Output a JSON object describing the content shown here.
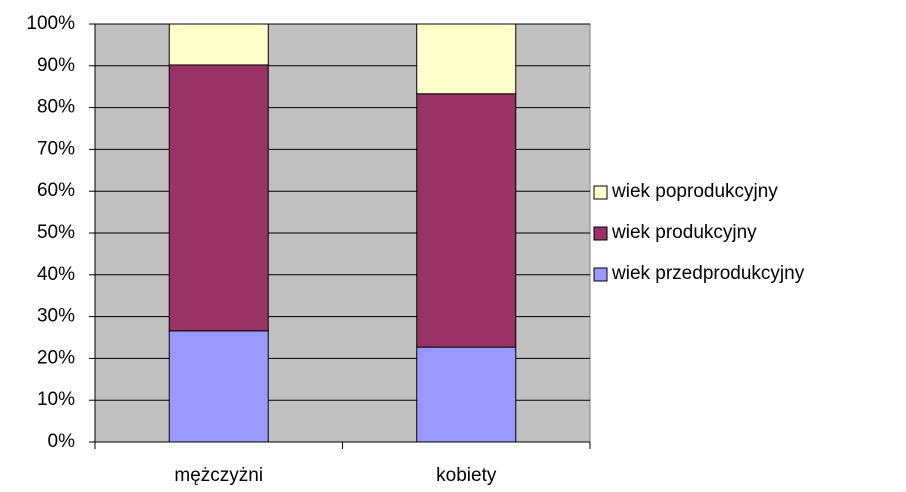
{
  "chart_data": {
    "type": "stacked_bar",
    "categories": [
      "mężczyżni",
      "kobiety"
    ],
    "series": [
      {
        "name": "wiek przedprodukcyjny",
        "color": "#9999ff",
        "values": [
          26.6,
          22.7
        ]
      },
      {
        "name": "wiek produkcyjny",
        "color": "#993366",
        "values": [
          63.6,
          60.6
        ]
      },
      {
        "name": "wiek poprodukcyjny",
        "color": "#ffffcc",
        "values": [
          9.8,
          16.7
        ]
      }
    ],
    "ylim": [
      0,
      100
    ],
    "yticks": [
      {
        "value": 0,
        "label": "0%"
      },
      {
        "value": 10,
        "label": "10%"
      },
      {
        "value": 20,
        "label": "20%"
      },
      {
        "value": 30,
        "label": "30%"
      },
      {
        "value": 40,
        "label": "40%"
      },
      {
        "value": 50,
        "label": "50%"
      },
      {
        "value": 60,
        "label": "60%"
      },
      {
        "value": 70,
        "label": "70%"
      },
      {
        "value": 80,
        "label": "80%"
      },
      {
        "value": 90,
        "label": "90%"
      },
      {
        "value": 100,
        "label": "100%"
      }
    ],
    "grid": true,
    "legend": "right",
    "plot_background": "#c0c0c0"
  }
}
